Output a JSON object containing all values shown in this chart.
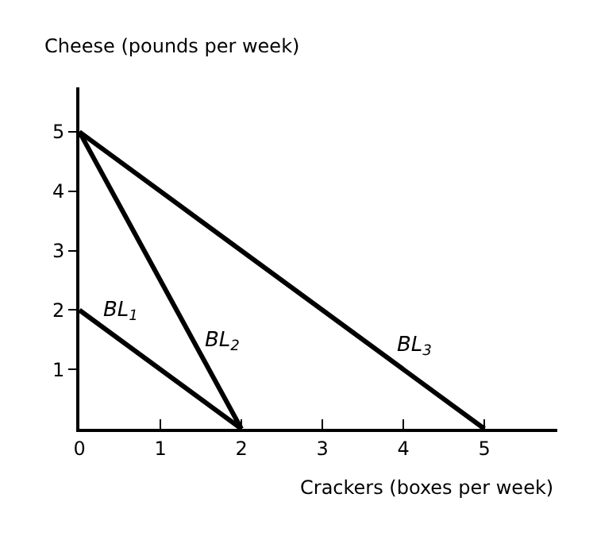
{
  "chart_data": {
    "type": "line",
    "xlabel": "Crackers (boxes per week)",
    "ylabel": "Cheese (pounds per week)",
    "series": [
      {
        "name": "BL$_{1}$",
        "x": [
          0,
          2
        ],
        "values": [
          2,
          0
        ],
        "color": "#000000"
      },
      {
        "name": "BL$_{2}$",
        "x": [
          0,
          2
        ],
        "values": [
          5,
          0
        ],
        "color": "#000000"
      },
      {
        "name": "BL$_{3}$",
        "x": [
          0,
          5
        ],
        "values": [
          5,
          0
        ],
        "color": "#000000"
      }
    ],
    "xlim": [
      0,
      5.9
    ],
    "ylim": [
      0,
      5.75
    ],
    "xticks": [
      0,
      1,
      2,
      3,
      4,
      5
    ],
    "yticks": [
      1,
      2,
      3,
      4,
      5
    ],
    "legend": false,
    "marker": "none",
    "line_style": "solid"
  }
}
